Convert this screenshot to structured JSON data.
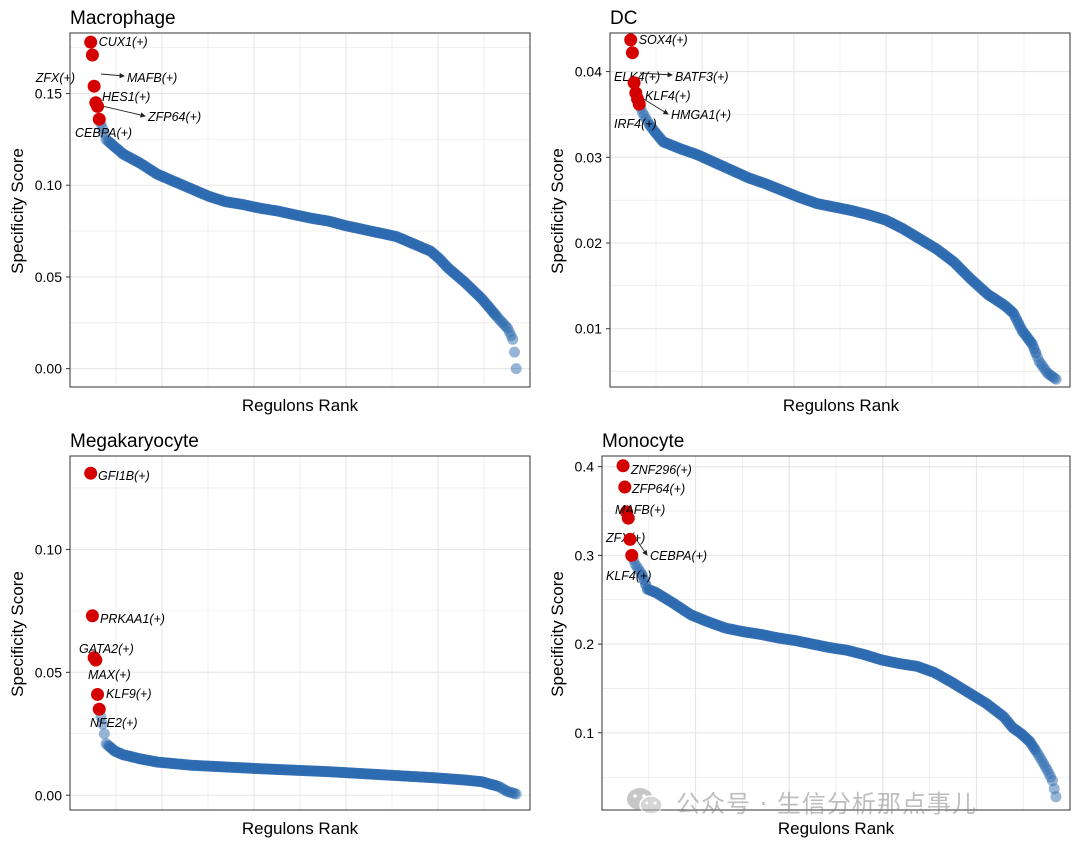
{
  "watermark": {
    "text": "公众号 · 生信分析那点事儿",
    "icon": "wechat-icon"
  },
  "colors": {
    "highlight": "#d40000",
    "regular": "#2e6bb0",
    "grid": "#e6e6e6",
    "axis": "#333333"
  },
  "chart_data": [
    {
      "type": "scatter",
      "title": "Macrophage",
      "xlabel": "Regulons Rank",
      "ylabel": "Specificity Score",
      "n_points": 250,
      "ylim": [
        -0.01,
        0.183
      ],
      "y_ticks": [
        0.0,
        0.05,
        0.1,
        0.15
      ],
      "y_tick_labels": [
        "0.00",
        "0.05",
        "0.10",
        "0.15"
      ],
      "curve": [
        [
          1,
          0.178
        ],
        [
          2,
          0.171
        ],
        [
          3,
          0.154
        ],
        [
          4,
          0.145
        ],
        [
          5,
          0.143
        ],
        [
          6,
          0.136
        ],
        [
          8,
          0.131
        ],
        [
          10,
          0.125
        ],
        [
          15,
          0.121
        ],
        [
          20,
          0.117
        ],
        [
          30,
          0.112
        ],
        [
          40,
          0.106
        ],
        [
          50,
          0.102
        ],
        [
          60,
          0.098
        ],
        [
          70,
          0.094
        ],
        [
          80,
          0.091
        ],
        [
          90,
          0.0895
        ],
        [
          100,
          0.0875
        ],
        [
          110,
          0.086
        ],
        [
          120,
          0.084
        ],
        [
          130,
          0.082
        ],
        [
          140,
          0.0805
        ],
        [
          150,
          0.078
        ],
        [
          160,
          0.076
        ],
        [
          170,
          0.074
        ],
        [
          180,
          0.072
        ],
        [
          190,
          0.068
        ],
        [
          200,
          0.064
        ],
        [
          205,
          0.06
        ],
        [
          210,
          0.055
        ],
        [
          220,
          0.047
        ],
        [
          230,
          0.038
        ],
        [
          240,
          0.027
        ],
        [
          245,
          0.022
        ],
        [
          248,
          0.016
        ],
        [
          249,
          0.009
        ],
        [
          250,
          0.0
        ]
      ],
      "highlighted": [
        {
          "label": "CUX1(+)",
          "rank": 1,
          "score": 0.178
        },
        {
          "label": "ZFX(+)",
          "rank": 2,
          "score": 0.171
        },
        {
          "label": "MAFB(+)",
          "rank": 3,
          "score": 0.154
        },
        {
          "label": "HES1(+)",
          "rank": 4,
          "score": 0.145
        },
        {
          "label": "ZFP64(+)",
          "rank": 5,
          "score": 0.143
        },
        {
          "label": "CEBPA(+)",
          "rank": 6,
          "score": 0.136
        }
      ]
    },
    {
      "type": "scatter",
      "title": "DC",
      "xlabel": "Regulons Rank",
      "ylabel": "Specificity Score",
      "n_points": 250,
      "ylim": [
        0.0032,
        0.0445
      ],
      "y_ticks": [
        0.01,
        0.02,
        0.03,
        0.04
      ],
      "y_tick_labels": [
        "0.01",
        "0.02",
        "0.03",
        "0.04"
      ],
      "curve": [
        [
          1,
          0.0437
        ],
        [
          2,
          0.0422
        ],
        [
          3,
          0.0387
        ],
        [
          4,
          0.0375
        ],
        [
          5,
          0.0368
        ],
        [
          6,
          0.0362
        ],
        [
          8,
          0.0352
        ],
        [
          12,
          0.0338
        ],
        [
          15,
          0.033
        ],
        [
          20,
          0.0318
        ],
        [
          30,
          0.031
        ],
        [
          40,
          0.0303
        ],
        [
          50,
          0.0294
        ],
        [
          60,
          0.0285
        ],
        [
          70,
          0.0276
        ],
        [
          80,
          0.0269
        ],
        [
          90,
          0.0261
        ],
        [
          100,
          0.0253
        ],
        [
          110,
          0.0246
        ],
        [
          120,
          0.0242
        ],
        [
          130,
          0.0238
        ],
        [
          140,
          0.0233
        ],
        [
          150,
          0.0227
        ],
        [
          160,
          0.0217
        ],
        [
          170,
          0.0205
        ],
        [
          180,
          0.0193
        ],
        [
          190,
          0.0178
        ],
        [
          200,
          0.0158
        ],
        [
          210,
          0.014
        ],
        [
          220,
          0.0127
        ],
        [
          225,
          0.0118
        ],
        [
          230,
          0.0098
        ],
        [
          236,
          0.0082
        ],
        [
          240,
          0.0062
        ],
        [
          245,
          0.0048
        ],
        [
          250,
          0.0041
        ]
      ],
      "highlighted": [
        {
          "label": "SOX4(+)",
          "rank": 1,
          "score": 0.0437
        },
        {
          "label": "ELK4(+)",
          "rank": 2,
          "score": 0.0422
        },
        {
          "label": "BATF3(+)",
          "rank": 3,
          "score": 0.0387
        },
        {
          "label": "KLF4(+)",
          "rank": 4,
          "score": 0.0375
        },
        {
          "label": "HMGA1(+)",
          "rank": 5,
          "score": 0.0368
        },
        {
          "label": "IRF4(+)",
          "rank": 6,
          "score": 0.0362
        }
      ]
    },
    {
      "type": "scatter",
      "title": "Megakaryocyte",
      "xlabel": "Regulons Rank",
      "ylabel": "Specificity Score",
      "n_points": 250,
      "ylim": [
        -0.006,
        0.138
      ],
      "y_ticks": [
        0.0,
        0.05,
        0.1
      ],
      "y_tick_labels": [
        "0.00",
        "0.05",
        "0.10"
      ],
      "curve": [
        [
          1,
          0.131
        ],
        [
          2,
          0.073
        ],
        [
          3,
          0.056
        ],
        [
          4,
          0.055
        ],
        [
          5,
          0.041
        ],
        [
          6,
          0.035
        ],
        [
          8,
          0.029
        ],
        [
          10,
          0.021
        ],
        [
          15,
          0.018
        ],
        [
          20,
          0.0165
        ],
        [
          30,
          0.0148
        ],
        [
          40,
          0.0135
        ],
        [
          60,
          0.0122
        ],
        [
          80,
          0.0115
        ],
        [
          100,
          0.0108
        ],
        [
          120,
          0.0102
        ],
        [
          140,
          0.0096
        ],
        [
          160,
          0.0088
        ],
        [
          180,
          0.008
        ],
        [
          200,
          0.0072
        ],
        [
          220,
          0.0062
        ],
        [
          230,
          0.0055
        ],
        [
          240,
          0.0035
        ],
        [
          245,
          0.0015
        ],
        [
          250,
          0.0005
        ]
      ],
      "highlighted": [
        {
          "label": "GFI1B(+)",
          "rank": 1,
          "score": 0.131
        },
        {
          "label": "PRKAA1(+)",
          "rank": 2,
          "score": 0.073
        },
        {
          "label": "GATA2(+)",
          "rank": 3,
          "score": 0.056
        },
        {
          "label": "MAX(+)",
          "rank": 4,
          "score": 0.055
        },
        {
          "label": "KLF9(+)",
          "rank": 5,
          "score": 0.041
        },
        {
          "label": "NFE2(+)",
          "rank": 6,
          "score": 0.035
        }
      ]
    },
    {
      "type": "scatter",
      "title": "Monocyte",
      "xlabel": "Regulons Rank",
      "ylabel": "Specificity Score",
      "n_points": 250,
      "ylim": [
        0.013,
        0.412
      ],
      "y_ticks": [
        0.1,
        0.2,
        0.3,
        0.4
      ],
      "y_tick_labels": [
        "0.1",
        "0.2",
        "0.3",
        "0.4"
      ],
      "curve": [
        [
          1,
          0.401
        ],
        [
          2,
          0.377
        ],
        [
          3,
          0.349
        ],
        [
          4,
          0.342
        ],
        [
          5,
          0.318
        ],
        [
          6,
          0.3
        ],
        [
          8,
          0.29
        ],
        [
          12,
          0.278
        ],
        [
          15,
          0.262
        ],
        [
          20,
          0.258
        ],
        [
          30,
          0.246
        ],
        [
          40,
          0.233
        ],
        [
          50,
          0.225
        ],
        [
          60,
          0.218
        ],
        [
          70,
          0.214
        ],
        [
          80,
          0.211
        ],
        [
          90,
          0.207
        ],
        [
          100,
          0.204
        ],
        [
          110,
          0.2
        ],
        [
          120,
          0.196
        ],
        [
          130,
          0.193
        ],
        [
          140,
          0.188
        ],
        [
          150,
          0.182
        ],
        [
          160,
          0.178
        ],
        [
          170,
          0.175
        ],
        [
          180,
          0.168
        ],
        [
          190,
          0.157
        ],
        [
          200,
          0.145
        ],
        [
          210,
          0.133
        ],
        [
          220,
          0.118
        ],
        [
          225,
          0.106
        ],
        [
          230,
          0.099
        ],
        [
          235,
          0.09
        ],
        [
          240,
          0.075
        ],
        [
          245,
          0.058
        ],
        [
          248,
          0.046
        ],
        [
          250,
          0.028
        ]
      ],
      "highlighted": [
        {
          "label": "ZNF296(+)",
          "rank": 1,
          "score": 0.401
        },
        {
          "label": "ZFP64(+)",
          "rank": 2,
          "score": 0.377
        },
        {
          "label": "MAFB(+)",
          "rank": 3,
          "score": 0.349
        },
        {
          "label": "ZFX(+)",
          "rank": 4,
          "score": 0.342
        },
        {
          "label": "CEBPA(+)",
          "rank": 5,
          "score": 0.318
        },
        {
          "label": "KLF4(+)",
          "rank": 6,
          "score": 0.3
        }
      ]
    }
  ]
}
